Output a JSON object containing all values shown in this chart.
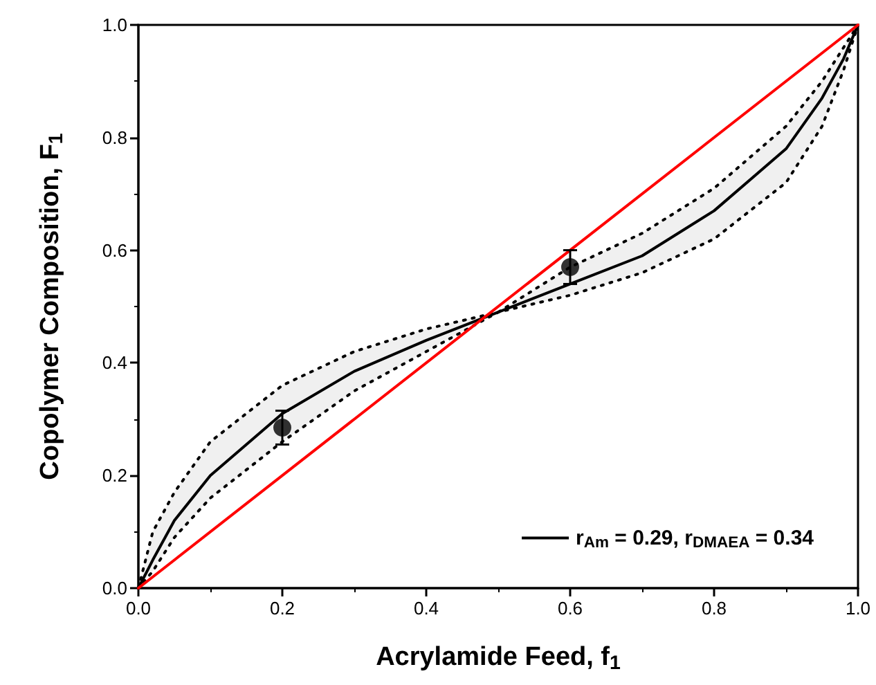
{
  "chart_data": {
    "type": "line",
    "xlabel": "Acrylamide Feed, f$_{1}$",
    "ylabel": "Copolymer Composition, F$_{1}$",
    "xlim": [
      0,
      1
    ],
    "ylim": [
      0,
      1
    ],
    "xticks": [
      {
        "value": 0,
        "label": "0.0"
      },
      0.2,
      0.4,
      0.6,
      0.8,
      {
        "value": 1,
        "label": "1.0"
      }
    ],
    "yticks": [
      {
        "value": 0,
        "label": "0.0"
      },
      0.2,
      0.4,
      0.6,
      0.8,
      {
        "value": 1,
        "label": "1.0"
      }
    ],
    "grid": false,
    "legend": "bottom right",
    "series": [
      {
        "name": "r$_{Am}$ = 0.29, r$_{DMAEA}$ = 0.34",
        "color": "#000000",
        "line_style": "solid",
        "marker": "none",
        "x": [
          0,
          0.02,
          0.05,
          0.1,
          0.2,
          0.3,
          0.4,
          0.5,
          0.6,
          0.7,
          0.8,
          0.9,
          0.95,
          0.98,
          1
        ],
        "values": [
          0,
          0.05,
          0.12,
          0.2,
          0.31,
          0.385,
          0.44,
          0.49,
          0.54,
          0.59,
          0.67,
          0.78,
          0.87,
          0.94,
          1
        ],
        "lower": [
          0,
          0.03,
          0.09,
          0.16,
          0.26,
          0.35,
          0.42,
          0.49,
          0.52,
          0.56,
          0.62,
          0.72,
          0.82,
          0.92,
          1
        ],
        "upper": [
          0,
          0.1,
          0.17,
          0.26,
          0.36,
          0.42,
          0.46,
          0.49,
          0.57,
          0.63,
          0.71,
          0.82,
          0.9,
          0.96,
          1
        ]
      },
      {
        "color": "#ff0000",
        "line_style": "solid",
        "marker": "none",
        "x": [
          0,
          1
        ],
        "values": [
          0,
          1
        ]
      },
      {
        "type": "scatter",
        "color": "#000000",
        "marker": "circle",
        "x": [
          0.2,
          0.6
        ],
        "values": [
          0.285,
          0.57
        ],
        "errors": [
          0.03,
          0.03
        ]
      }
    ]
  }
}
